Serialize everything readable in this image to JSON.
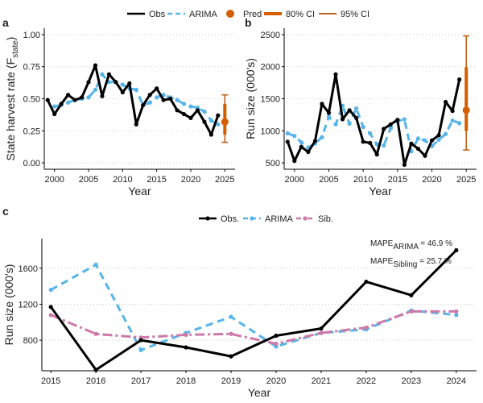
{
  "colors": {
    "obs": "#000000",
    "arima": "#56b4e9",
    "pred": "#d55e00",
    "ci": "#c0631a",
    "sib": "#cc79a7",
    "grid": "#bdbdbd"
  },
  "legend_top": {
    "items": [
      {
        "label": "Obs",
        "style": "obs"
      },
      {
        "label": "ARIMA",
        "style": "arima"
      },
      {
        "label": "Pred",
        "style": "pred"
      },
      {
        "label": "80% CI",
        "style": "ci80"
      },
      {
        "label": "95% CI",
        "style": "ci95"
      }
    ]
  },
  "legend_c": {
    "items": [
      {
        "label": "Obs.",
        "style": "obs"
      },
      {
        "label": "ARIMA",
        "style": "arima"
      },
      {
        "label": "Sib.",
        "style": "sib"
      }
    ]
  },
  "chart_data": [
    {
      "panel": "a",
      "type": "line",
      "xlabel": "Year",
      "ylabel_main": "State harvest rate (F",
      "ylabel_sub": "state",
      "ylabel_end": ")",
      "xlim": [
        1998.5,
        2026.5
      ],
      "ylim": [
        -0.05,
        1.05
      ],
      "xticks": [
        2000,
        2005,
        2010,
        2015,
        2020,
        2025
      ],
      "yticks": [
        0.0,
        0.25,
        0.5,
        0.75,
        1.0
      ],
      "ytick_labels": [
        "0.00",
        "0.25",
        "0.50",
        "0.75",
        "1.00"
      ],
      "grid": "horizontal dotted",
      "series": [
        {
          "name": "Obs",
          "style": "obs",
          "x": [
            1999,
            2000,
            2001,
            2002,
            2003,
            2004,
            2005,
            2006,
            2007,
            2008,
            2009,
            2010,
            2011,
            2012,
            2013,
            2014,
            2015,
            2016,
            2017,
            2018,
            2019,
            2020,
            2021,
            2022,
            2023,
            2024
          ],
          "y": [
            0.49,
            0.38,
            0.46,
            0.53,
            0.49,
            0.51,
            0.63,
            0.76,
            0.52,
            0.69,
            0.63,
            0.55,
            0.62,
            0.3,
            0.45,
            0.53,
            0.58,
            0.49,
            0.5,
            0.41,
            0.38,
            0.35,
            0.41,
            0.32,
            0.22,
            0.37
          ]
        },
        {
          "name": "ARIMA",
          "style": "arima",
          "x": [
            2000,
            2001,
            2002,
            2003,
            2004,
            2005,
            2006,
            2007,
            2008,
            2009,
            2010,
            2011,
            2012,
            2013,
            2014,
            2015,
            2016,
            2017,
            2018,
            2019,
            2020,
            2021,
            2022,
            2023,
            2024
          ],
          "y": [
            0.44,
            0.45,
            0.47,
            0.49,
            0.5,
            0.51,
            0.57,
            0.69,
            0.63,
            0.63,
            0.61,
            0.58,
            0.57,
            0.45,
            0.47,
            0.51,
            0.53,
            0.51,
            0.49,
            0.46,
            0.44,
            0.43,
            0.4,
            0.33,
            0.3
          ]
        }
      ],
      "prediction": {
        "x": 2025,
        "y": 0.32,
        "ci80": [
          0.22,
          0.46
        ],
        "ci95": [
          0.16,
          0.53
        ]
      }
    },
    {
      "panel": "b",
      "type": "line",
      "xlabel": "Year",
      "ylabel": "Run size (000's)",
      "xlim": [
        1998.5,
        2026.5
      ],
      "ylim": [
        400,
        2600
      ],
      "xticks": [
        2000,
        2005,
        2010,
        2015,
        2020,
        2025
      ],
      "yticks": [
        500,
        1000,
        1500,
        2000,
        2500
      ],
      "grid": "horizontal dotted",
      "series": [
        {
          "name": "Obs",
          "style": "obs",
          "x": [
            1999,
            2000,
            2001,
            2002,
            2003,
            2004,
            2005,
            2006,
            2007,
            2008,
            2009,
            2010,
            2011,
            2012,
            2013,
            2014,
            2015,
            2016,
            2017,
            2018,
            2019,
            2020,
            2021,
            2022,
            2023,
            2024
          ],
          "y": [
            830,
            530,
            750,
            670,
            840,
            1420,
            1280,
            1880,
            1180,
            1320,
            1200,
            830,
            810,
            630,
            1030,
            1100,
            1170,
            470,
            800,
            720,
            610,
            850,
            930,
            1450,
            1310,
            1800
          ]
        },
        {
          "name": "ARIMA",
          "style": "arima",
          "x": [
            1999,
            2000,
            2001,
            2002,
            2003,
            2004,
            2005,
            2006,
            2007,
            2008,
            2009,
            2010,
            2011,
            2012,
            2013,
            2014,
            2015,
            2016,
            2017,
            2018,
            2019,
            2020,
            2021,
            2022,
            2023,
            2024
          ],
          "y": [
            960,
            920,
            820,
            740,
            800,
            900,
            1220,
            1100,
            1390,
            1110,
            1350,
            1060,
            960,
            790,
            770,
            1040,
            1150,
            1180,
            680,
            880,
            850,
            760,
            860,
            950,
            1160,
            1120
          ]
        }
      ],
      "prediction": {
        "x": 2025,
        "y": 1320,
        "ci80": [
          1000,
          1990
        ],
        "ci95": [
          700,
          2480
        ]
      }
    },
    {
      "panel": "c",
      "type": "line",
      "xlabel": "Year",
      "ylabel": "Run size (000's)",
      "xlim": [
        2014.8,
        2024.45
      ],
      "ylim": [
        460,
        1930
      ],
      "xticks": [
        2015,
        2016,
        2017,
        2018,
        2019,
        2020,
        2021,
        2022,
        2023,
        2024
      ],
      "yticks": [
        800,
        1200,
        1600
      ],
      "grid": "horizontal dotted",
      "series": [
        {
          "name": "Obs.",
          "style": "obs",
          "x": [
            2015,
            2016,
            2017,
            2018,
            2019,
            2020,
            2021,
            2022,
            2023,
            2024
          ],
          "y": [
            1170,
            470,
            800,
            720,
            620,
            850,
            930,
            1450,
            1300,
            1800
          ]
        },
        {
          "name": "ARIMA",
          "style": "arima",
          "x": [
            2015,
            2016,
            2017,
            2018,
            2019,
            2020,
            2021,
            2022,
            2023,
            2024
          ],
          "y": [
            1360,
            1640,
            690,
            880,
            1060,
            730,
            880,
            920,
            1130,
            1080
          ]
        },
        {
          "name": "Sib.",
          "style": "sib",
          "x": [
            2015,
            2016,
            2017,
            2018,
            2019,
            2020,
            2021,
            2022,
            2023,
            2024
          ],
          "y": [
            1080,
            870,
            830,
            860,
            870,
            760,
            880,
            940,
            1120,
            1120
          ]
        }
      ],
      "annotations": [
        {
          "pre": "MAPE",
          "sub": "ARIMA",
          "post": " = 46.9 %"
        },
        {
          "pre": "MAPE",
          "sub": "Sibling",
          "post": " = 25.7 %"
        }
      ]
    }
  ],
  "panel_labels": [
    "a",
    "b",
    "c"
  ]
}
